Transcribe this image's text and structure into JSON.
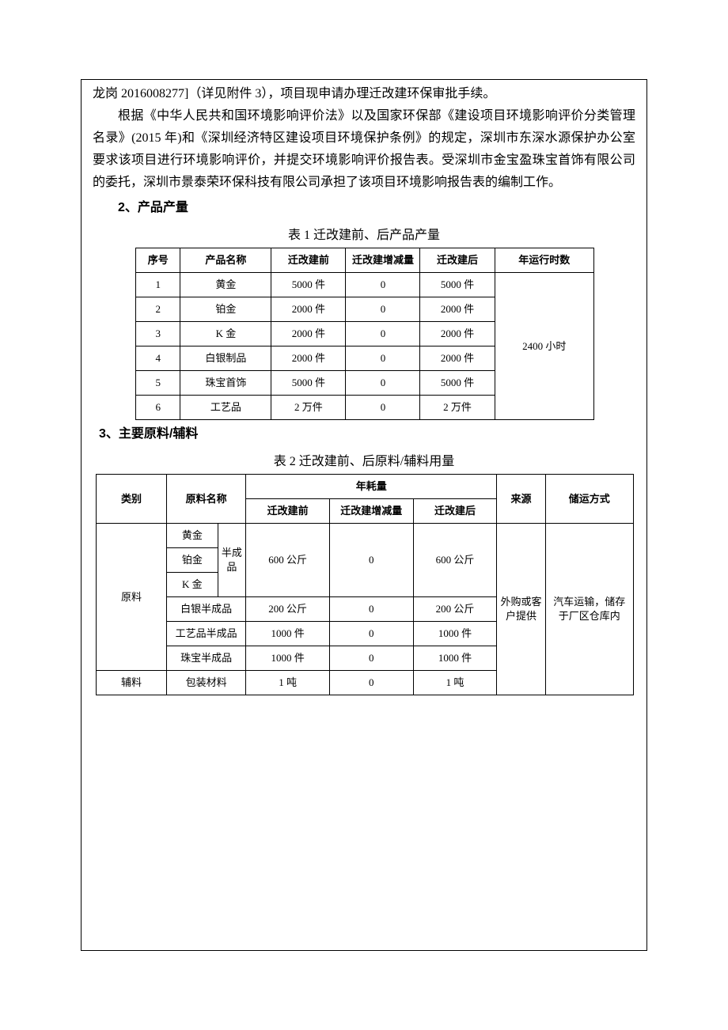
{
  "para0": "龙岗 2016008277]（详见附件 3），项目现申请办理迁改建环保审批手续。",
  "para1": "根据《中华人民共和国环境影响评价法》以及国家环保部《建设项目环境影响评价分类管理名录》(2015 年)和《深圳经济特区建设项目环境保护条例》的规定，深圳市东深水源保护办公室要求该项目进行环境影响评价，并提交环境影响评价报告表。受深圳市金宝盈珠宝首饰有限公司的委托，深圳市景泰荣环保科技有限公司承担了该项目环境影响报告表的编制工作。",
  "sec2": "2、产品产量",
  "tbl1_caption": "表 1  迁改建前、后产品产量",
  "tbl1": {
    "headers": [
      "序号",
      "产品名称",
      "迁改建前",
      "迁改建增减量",
      "迁改建后",
      "年运行时数"
    ],
    "runtime_merged": "2400 小时",
    "rows": [
      [
        "1",
        "黄金",
        "5000 件",
        "0",
        "5000 件"
      ],
      [
        "2",
        "铂金",
        "2000 件",
        "0",
        "2000 件"
      ],
      [
        "3",
        "K 金",
        "2000 件",
        "0",
        "2000 件"
      ],
      [
        "4",
        "白银制品",
        "2000 件",
        "0",
        "2000 件"
      ],
      [
        "5",
        "珠宝首饰",
        "5000 件",
        "0",
        "5000 件"
      ],
      [
        "6",
        "工艺品",
        "2 万件",
        "0",
        "2 万件"
      ]
    ]
  },
  "sec3": "3、主要原料/辅料",
  "tbl2_caption": "表 2  迁改建前、后原料/辅料用量",
  "tbl2": {
    "h_category": "类别",
    "h_name": "原料名称",
    "h_consume": "年耗量",
    "h_before": "迁改建前",
    "h_delta": "迁改建增减量",
    "h_after": "迁改建后",
    "h_source": "来源",
    "h_storage": "储运方式",
    "cat_raw": "原料",
    "cat_aux": "辅料",
    "semi": "半成品",
    "gold": "黄金",
    "plat": "铂金",
    "kgold": "K 金",
    "silver": "白银半成品",
    "craft": "工艺品半成品",
    "jewel": "珠宝半成品",
    "pack": "包装材料",
    "v_600": "600 公斤",
    "v_200": "200 公斤",
    "v_1000a": "1000 件",
    "v_1000b": "1000 件",
    "v_1t": "1 吨",
    "zero": "0",
    "source_val": "外购或客户提供",
    "storage_val": "汽车运输，储存于厂区仓库内"
  }
}
